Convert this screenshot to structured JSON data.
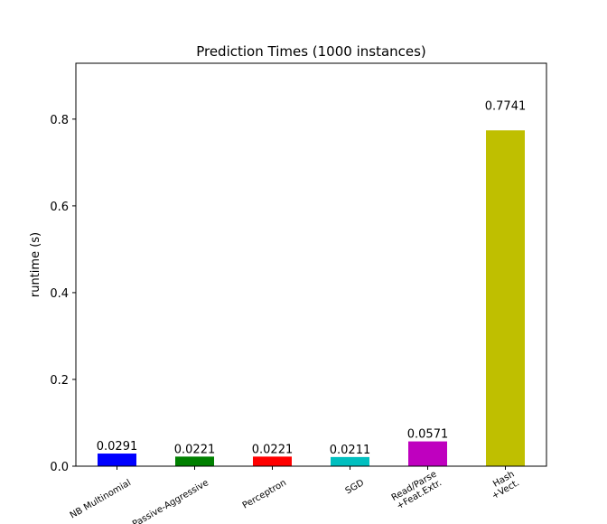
{
  "chart_data": {
    "type": "bar",
    "title": "Prediction Times (1000 instances)",
    "xlabel": "",
    "ylabel": "runtime (s)",
    "categories": [
      [
        "NB Multinomial"
      ],
      [
        "Passive-Aggressive"
      ],
      [
        "Perceptron"
      ],
      [
        "SGD"
      ],
      [
        "Read/Parse",
        "+Feat.Extr."
      ],
      [
        "Hash",
        "+Vect."
      ]
    ],
    "values": [
      0.0291,
      0.0221,
      0.0221,
      0.0211,
      0.0571,
      0.7741
    ],
    "data_labels": [
      "0.0291",
      "0.0221",
      "0.0221",
      "0.0211",
      "0.0571",
      "0.7741"
    ],
    "colors": [
      "#0000ff",
      "#008000",
      "#ff0000",
      "#00bfbf",
      "#bf00bf",
      "#bfbf00"
    ],
    "ylim": [
      0,
      0.9288
    ],
    "yticks": [
      {
        "value": 0.0,
        "label": "0.0"
      },
      {
        "value": 0.2,
        "label": "0.2"
      },
      {
        "value": 0.4,
        "label": "0.4"
      },
      {
        "value": 0.6,
        "label": "0.6"
      },
      {
        "value": 0.8,
        "label": "0.8"
      }
    ],
    "grid": false,
    "legend": "none"
  }
}
